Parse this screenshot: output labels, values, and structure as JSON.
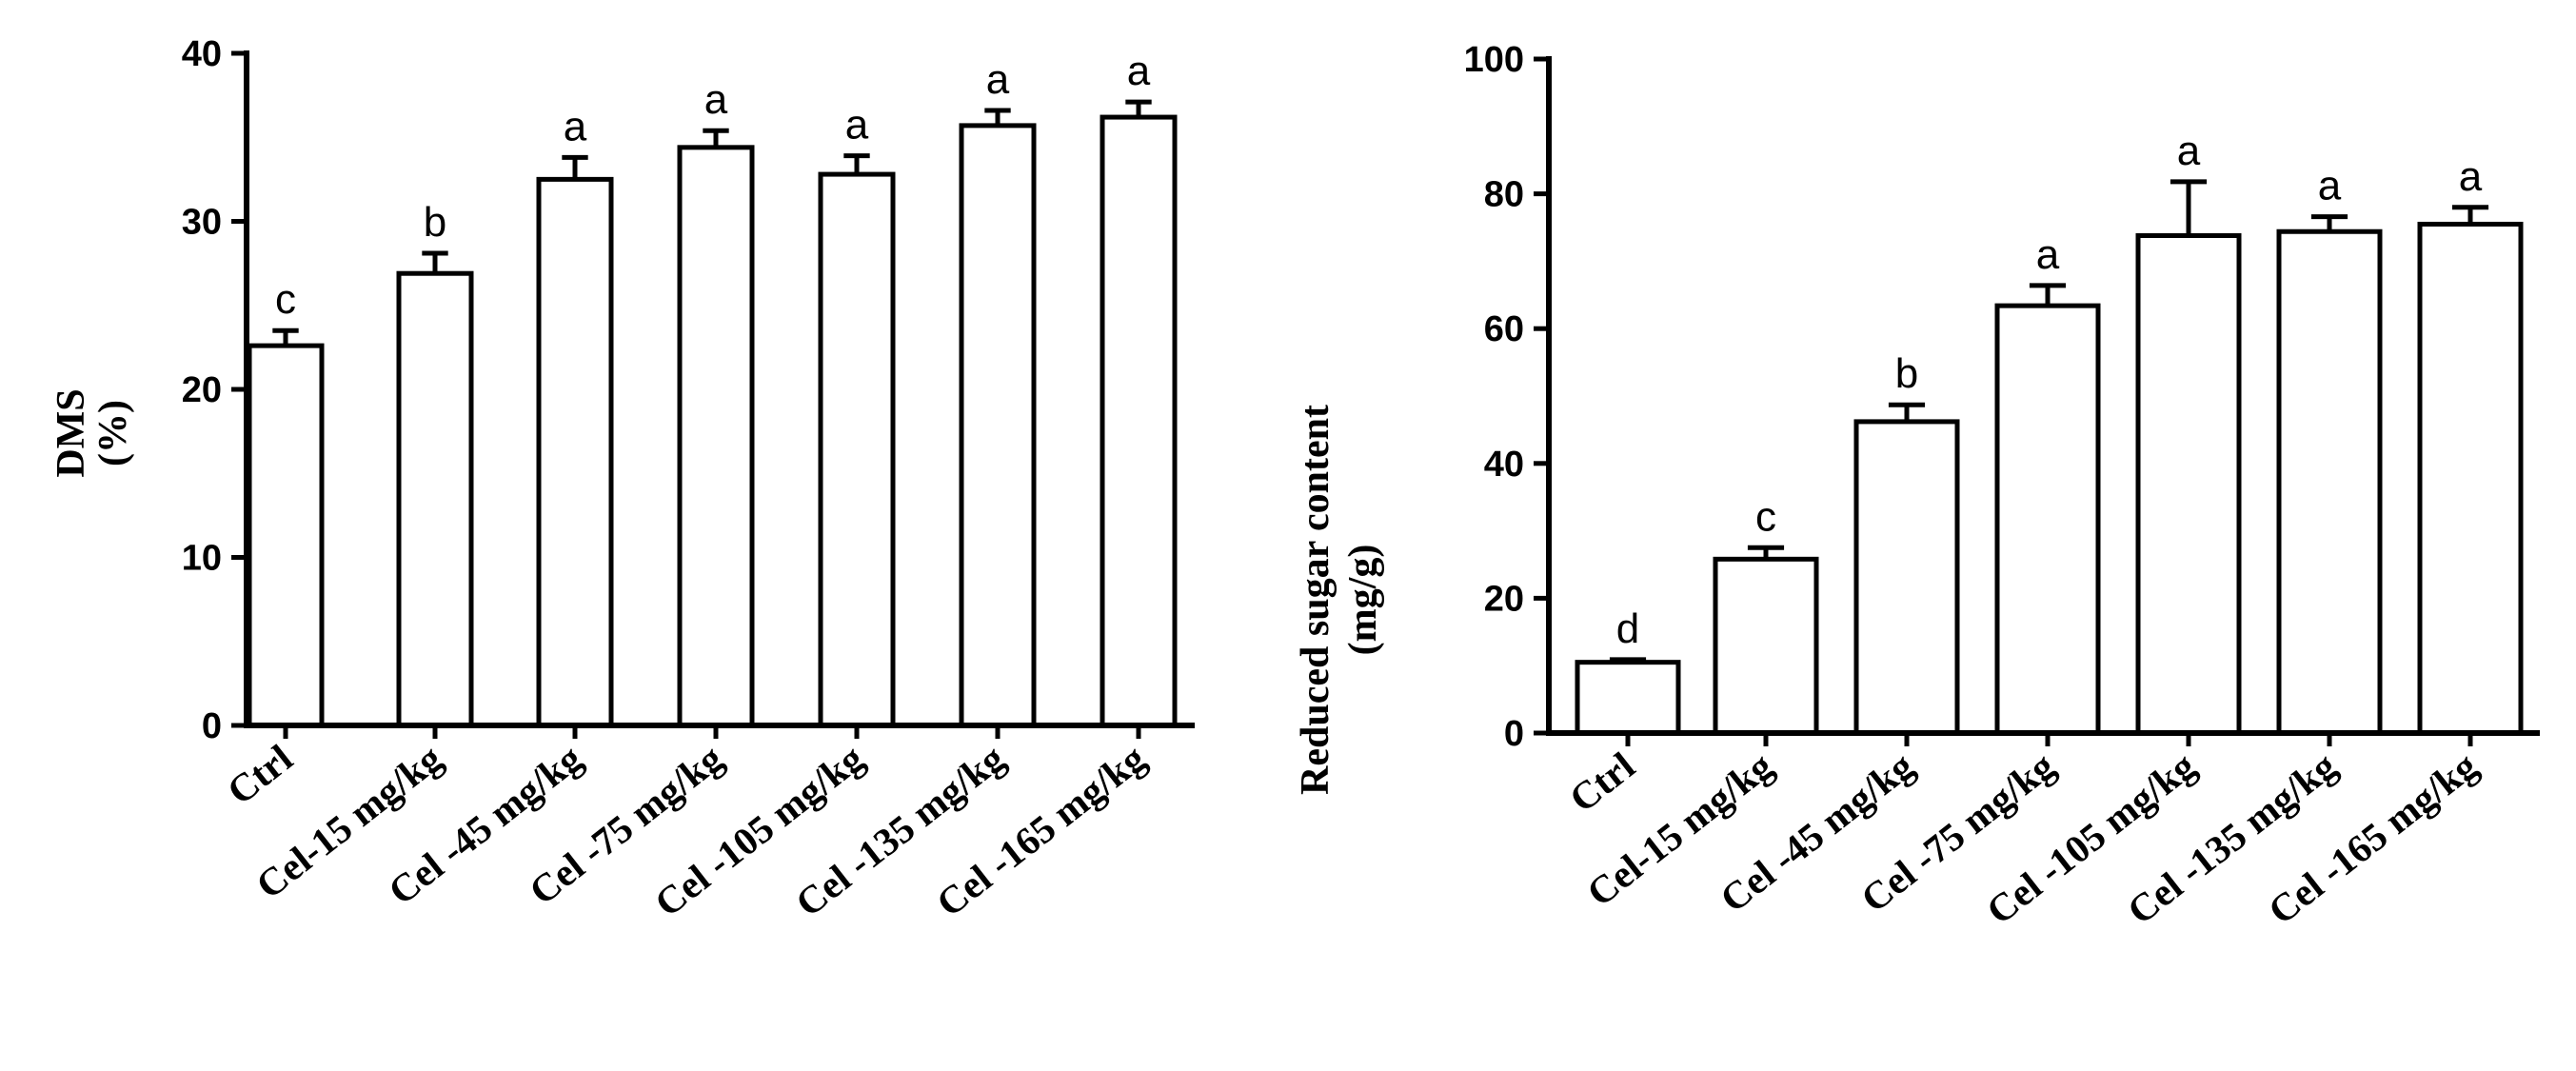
{
  "chart_data": [
    {
      "type": "bar",
      "ylabel": [
        "DMS",
        "(%)"
      ],
      "xlabel": "",
      "ylim": [
        0,
        40
      ],
      "yticks": [
        0,
        10,
        20,
        30,
        40
      ],
      "categories": [
        "Ctrl",
        "Cel-15 mg/kg",
        "Cel -45 mg/kg",
        "Cel -75 mg/kg",
        "Cel -105 mg/kg",
        "Cel -135 mg/kg",
        "Cel -165 mg/kg"
      ],
      "values": [
        22.6,
        26.9,
        32.5,
        34.4,
        32.8,
        35.7,
        36.2
      ],
      "errors": [
        0.9,
        1.2,
        1.3,
        1.0,
        1.1,
        0.9,
        0.9
      ],
      "significance": [
        "c",
        "b",
        "a",
        "a",
        "a",
        "a",
        "a"
      ],
      "bar_color": "#ffffff",
      "edge_color": "#000000"
    },
    {
      "type": "bar",
      "ylabel": [
        "Reduced  sugar content",
        "(mg/g)"
      ],
      "xlabel": "",
      "ylim": [
        0,
        100
      ],
      "yticks": [
        0,
        20,
        40,
        60,
        80,
        100
      ],
      "categories": [
        "Ctrl",
        "Cel-15 mg/kg",
        "Cel -45 mg/kg",
        "Cel -75 mg/kg",
        "Cel -105 mg/kg",
        "Cel -135 mg/kg",
        "Cel -165 mg/kg"
      ],
      "values": [
        10.5,
        25.8,
        46.2,
        63.4,
        73.8,
        74.4,
        75.5
      ],
      "errors": [
        0.4,
        1.7,
        2.5,
        3.0,
        8.0,
        2.2,
        2.5
      ],
      "significance": [
        "d",
        "c",
        "b",
        "a",
        "a",
        "a",
        "a"
      ],
      "bar_color": "#ffffff",
      "edge_color": "#000000"
    }
  ]
}
